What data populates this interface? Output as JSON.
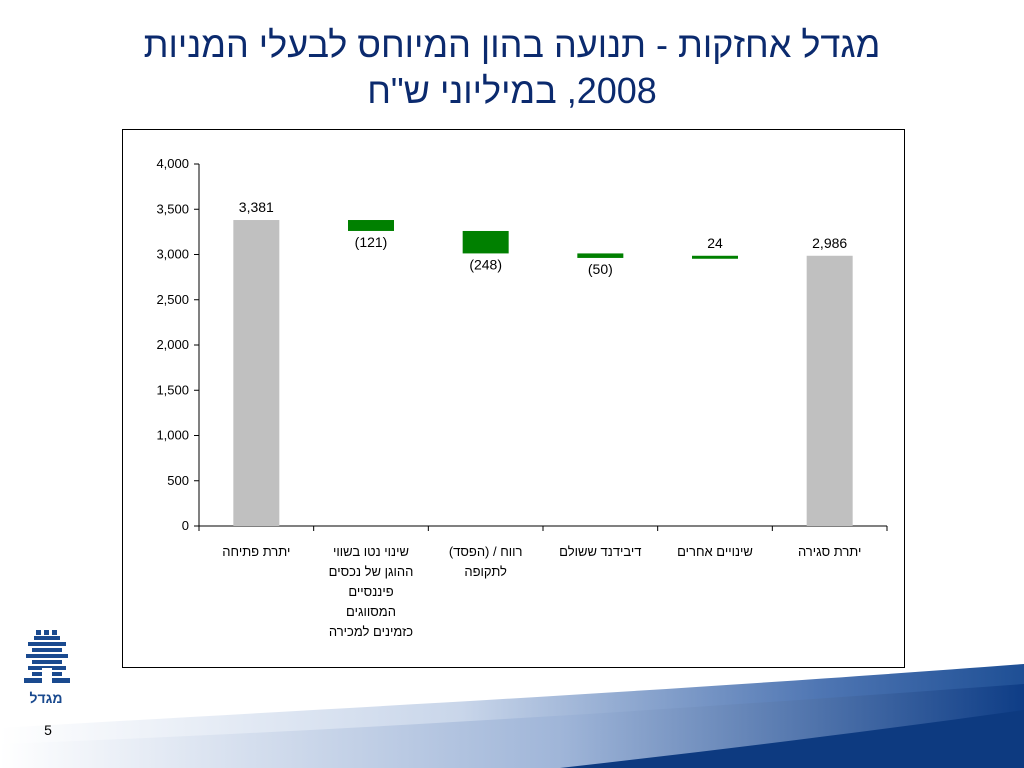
{
  "slide": {
    "title_line1": "מגדל אחזקות - תנועה בהון המיוחס לבעלי המניות",
    "title_line2": "2008, במיליוני ש\"ח",
    "page_number": "5",
    "logo_text": "מגדל"
  },
  "colors": {
    "title": "#0b2a6e",
    "total_bar": "#c0c0c0",
    "change_bar": "#008000",
    "axis": "#000000"
  },
  "chart_data": {
    "type": "bar",
    "subtype": "waterfall",
    "categories": [
      "יתרת פתיחה",
      "שינוי נטו בשווי ההוגן של נכסים פיננסיים המסווגים כזמינים למכירה",
      "רווח / (הפסד) לתקופה",
      "דיבידנד ששולם",
      "שינויים אחרים",
      "יתרת סגירה"
    ],
    "category_label_lines": [
      [
        "יתרת פתיחה"
      ],
      [
        "שינוי נטו בשווי",
        "ההוגן של נכסים",
        "פיננסיים",
        "המסווגים",
        "כזמינים למכירה"
      ],
      [
        "רווח / (הפסד)",
        "לתקופה"
      ],
      [
        "דיבידנד ששולם"
      ],
      [
        "שינויים אחרים"
      ],
      [
        "יתרת סגירה"
      ]
    ],
    "values": [
      3381,
      -121,
      -248,
      -50,
      24,
      2986
    ],
    "kinds": [
      "total",
      "change",
      "change",
      "change",
      "change",
      "total"
    ],
    "data_labels": [
      "3,381",
      "(121)",
      "(248)",
      "(50)",
      "24",
      "2,986"
    ],
    "ylim": [
      0,
      4000
    ],
    "yticks": [
      0,
      500,
      1000,
      1500,
      2000,
      2500,
      3000,
      3500,
      4000
    ],
    "ytick_labels": [
      "0",
      "500",
      "1,000",
      "1,500",
      "2,000",
      "2,500",
      "3,000",
      "3,500",
      "4,000"
    ],
    "legend": "none",
    "grid": false
  }
}
